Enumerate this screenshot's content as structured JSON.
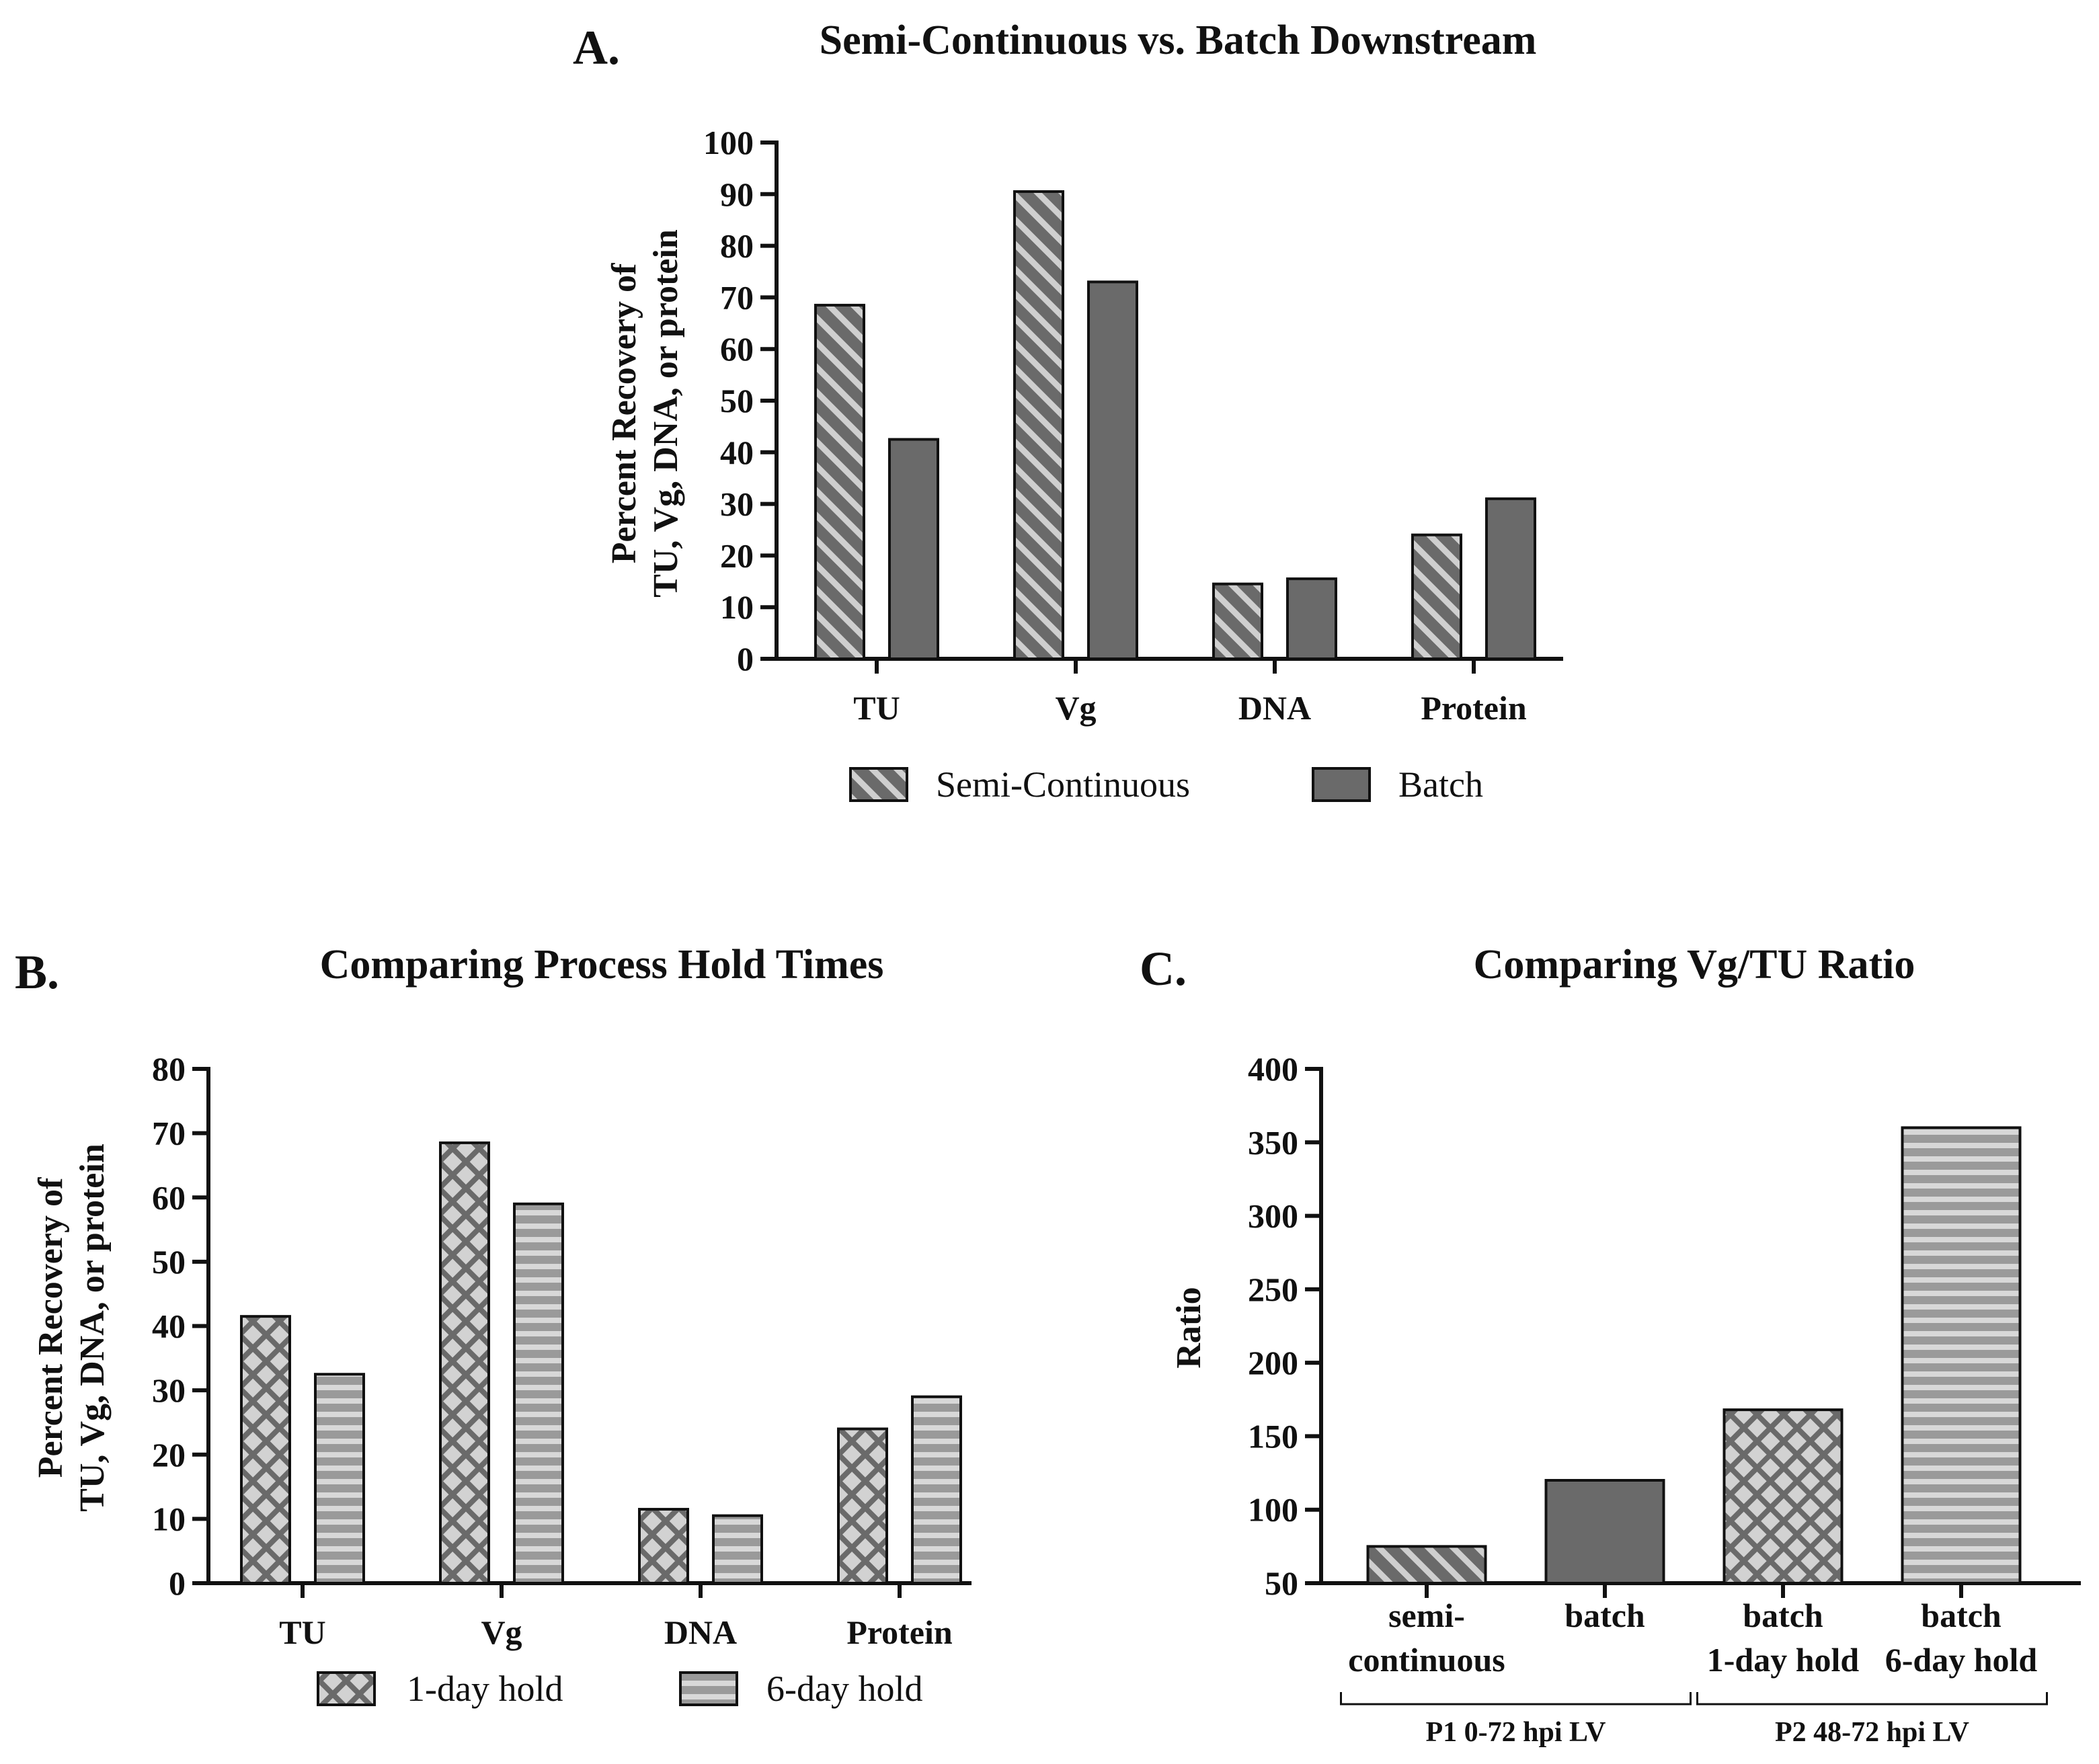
{
  "colors": {
    "bar_dark": "#6a6a6a",
    "axis": "#111111",
    "light_gray": "#c6c6c6",
    "mid_gray": "#9a9a9a",
    "stripe_light": "#d8d8d8"
  },
  "chart_data": [
    {
      "id": "A",
      "panel_label": "A.",
      "type": "bar",
      "title": "Semi-Continuous vs. Batch Downstream",
      "ylabel_lines": [
        "Percent Recovery of",
        "TU, Vg, DNA, or protein"
      ],
      "categories": [
        "TU",
        "Vg",
        "DNA",
        "Protein"
      ],
      "ylim": [
        0,
        100
      ],
      "yticks": [
        0,
        10,
        20,
        30,
        40,
        50,
        60,
        70,
        80,
        90,
        100
      ],
      "series": [
        {
          "name": "Semi-Continuous",
          "pattern": "diag",
          "values": [
            68.5,
            90.5,
            14.5,
            24
          ]
        },
        {
          "name": "Batch",
          "pattern": "solid",
          "values": [
            42.5,
            73,
            15.5,
            31
          ]
        }
      ],
      "legend": [
        "Semi-Continuous",
        "Batch"
      ]
    },
    {
      "id": "B",
      "panel_label": "B.",
      "type": "bar",
      "title": "Comparing Process Hold Times",
      "ylabel_lines": [
        "Percent Recovery of",
        "TU, Vg, DNA, or protein"
      ],
      "categories": [
        "TU",
        "Vg",
        "DNA",
        "Protein"
      ],
      "ylim": [
        0,
        80
      ],
      "yticks": [
        0,
        10,
        20,
        30,
        40,
        50,
        60,
        70,
        80
      ],
      "series": [
        {
          "name": "1-day hold",
          "pattern": "cross",
          "values": [
            41.5,
            68.5,
            11.5,
            24
          ]
        },
        {
          "name": "6-day hold",
          "pattern": "hstripe",
          "values": [
            32.5,
            59,
            10.5,
            29
          ]
        }
      ],
      "legend": [
        "1-day hold",
        "6-day hold"
      ]
    },
    {
      "id": "C",
      "panel_label": "C.",
      "type": "bar",
      "title": "Comparing Vg/TU Ratio",
      "ylabel_lines": [
        "Ratio"
      ],
      "categories": [
        [
          "semi-",
          "continuous"
        ],
        [
          "batch"
        ],
        [
          "batch",
          "1-day hold"
        ],
        [
          "batch",
          "6-day hold"
        ]
      ],
      "ylim": [
        50,
        400
      ],
      "yticks": [
        50,
        100,
        150,
        200,
        250,
        300,
        350,
        400
      ],
      "values": [
        75,
        120,
        168,
        360
      ],
      "patterns": [
        "diag",
        "solid",
        "cross",
        "hstripe"
      ],
      "groups": [
        {
          "label": "P1 0-72 hpi LV",
          "span": [
            0,
            1
          ]
        },
        {
          "label": "P2 48-72 hpi LV",
          "span": [
            2,
            3
          ]
        }
      ]
    }
  ]
}
